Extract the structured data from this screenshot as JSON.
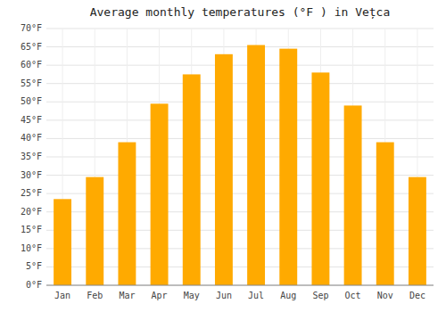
{
  "chart_data": {
    "type": "bar",
    "title": "Average monthly temperatures (°F ) in Vețca",
    "categories": [
      "Jan",
      "Feb",
      "Mar",
      "Apr",
      "May",
      "Jun",
      "Jul",
      "Aug",
      "Sep",
      "Oct",
      "Nov",
      "Dec"
    ],
    "values": [
      23.5,
      29.5,
      39.0,
      49.5,
      57.5,
      63.0,
      65.5,
      64.5,
      58.0,
      49.0,
      39.0,
      29.5
    ],
    "color": "#FFAA00",
    "ylim": [
      0,
      70
    ],
    "yticks": [
      {
        "value": 0,
        "label": "0°F"
      },
      {
        "value": 5,
        "label": "5°F"
      },
      {
        "value": 10,
        "label": "10°F"
      },
      {
        "value": 15,
        "label": "15°F"
      },
      {
        "value": 20,
        "label": "20°F"
      },
      {
        "value": 25,
        "label": "25°F"
      },
      {
        "value": 30,
        "label": "30°F"
      },
      {
        "value": 35,
        "label": "35°F"
      },
      {
        "value": 40,
        "label": "40°F"
      },
      {
        "value": 45,
        "label": "45°F"
      },
      {
        "value": 50,
        "label": "50°F"
      },
      {
        "value": 55,
        "label": "55°F"
      },
      {
        "value": 60,
        "label": "60°F"
      },
      {
        "value": 65,
        "label": "65°F"
      },
      {
        "value": 70,
        "label": "70°F"
      }
    ],
    "grid": true
  }
}
